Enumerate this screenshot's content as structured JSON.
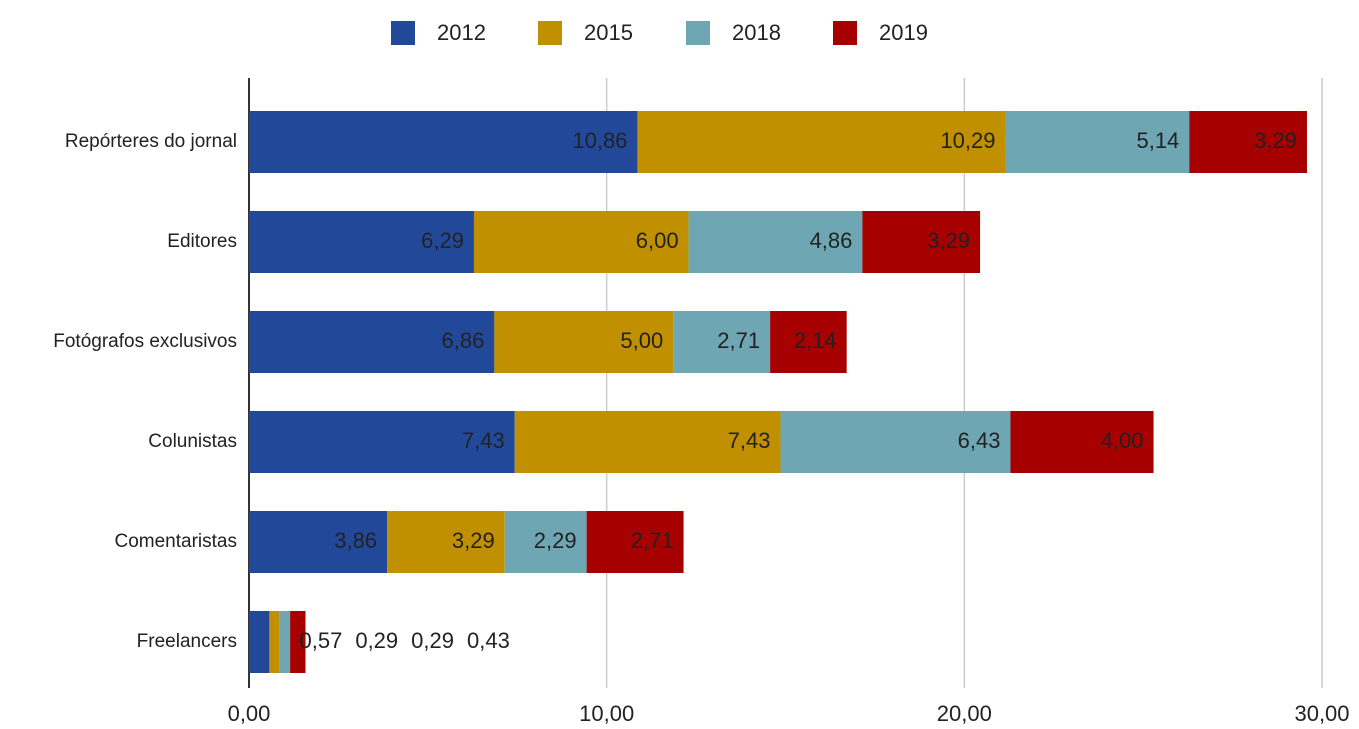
{
  "chart_data": {
    "type": "stacked-bar-horizontal",
    "categories": [
      "Repórteres do jornal",
      "Editores",
      "Fotógrafos exclusivos",
      "Colunistas",
      "Comentaristas",
      "Freelancers"
    ],
    "series": [
      {
        "name": "2012",
        "color": "#22489a",
        "values": [
          10.86,
          6.29,
          6.86,
          7.43,
          3.86,
          0.57
        ],
        "value_labels": [
          "10,86",
          "6,29",
          "6,86",
          "7,43",
          "3,86",
          "0,57"
        ]
      },
      {
        "name": "2015",
        "color": "#c09000",
        "values": [
          10.29,
          6.0,
          5.0,
          7.43,
          3.29,
          0.29
        ],
        "value_labels": [
          "10,29",
          "6,00",
          "5,00",
          "7,43",
          "3,29",
          "0,29"
        ]
      },
      {
        "name": "2018",
        "color": "#6fa6b3",
        "values": [
          5.14,
          4.86,
          2.71,
          6.43,
          2.29,
          0.29
        ],
        "value_labels": [
          "5,14",
          "4,86",
          "2,71",
          "6,43",
          "2,29",
          "0,29"
        ]
      },
      {
        "name": "2019",
        "color": "#a60000",
        "values": [
          3.29,
          3.29,
          2.14,
          4.0,
          2.71,
          0.43
        ],
        "value_labels": [
          "3,29",
          "3,29",
          "2,14",
          "4,00",
          "2,71",
          "0,43"
        ]
      }
    ],
    "xlim": [
      0,
      30
    ],
    "xticks": [
      {
        "value": 0,
        "label": "0,00"
      },
      {
        "value": 10,
        "label": "10,00"
      },
      {
        "value": 20,
        "label": "20,00"
      },
      {
        "value": 30,
        "label": "30,00"
      }
    ],
    "grid": true,
    "legend": "top"
  }
}
